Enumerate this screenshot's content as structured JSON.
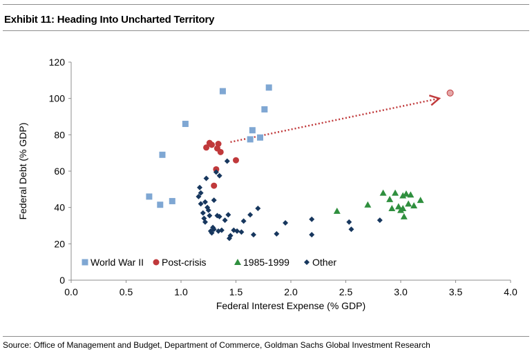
{
  "header": {
    "title": "Exhibit 11: Heading Into Uncharted Territory"
  },
  "footer": {
    "source": "Source: Office of Management and Budget, Department of Commerce, Goldman Sachs Global Investment Research"
  },
  "chart_data": {
    "type": "scatter",
    "xlabel": "Federal Interest Expense (% GDP)",
    "ylabel": "Federal  Debt (% GDP)",
    "xlim": [
      0,
      4
    ],
    "ylim": [
      0,
      120
    ],
    "xticks": [
      "0.0",
      "0.5",
      "1.0",
      "1.5",
      "2.0",
      "2.5",
      "3.0",
      "3.5",
      "4.0"
    ],
    "yticks": [
      "0",
      "20",
      "40",
      "60",
      "80",
      "100",
      "120"
    ],
    "grid": false,
    "legend_position": "bottom-left",
    "series": [
      {
        "name": "World War II",
        "marker": "square",
        "color": "#7fa7d3",
        "points": [
          [
            0.71,
            46
          ],
          [
            0.81,
            41.5
          ],
          [
            0.83,
            69
          ],
          [
            0.92,
            43.5
          ],
          [
            1.04,
            86
          ],
          [
            1.38,
            104
          ],
          [
            1.63,
            77.5
          ],
          [
            1.65,
            82.5
          ],
          [
            1.72,
            78.5
          ],
          [
            1.76,
            94
          ],
          [
            1.8,
            106
          ]
        ]
      },
      {
        "name": "Post-crisis",
        "marker": "circle",
        "color": "#c0393b",
        "points": [
          [
            1.23,
            73
          ],
          [
            1.26,
            75.5
          ],
          [
            1.28,
            74.5
          ],
          [
            1.3,
            52
          ],
          [
            1.32,
            61
          ],
          [
            1.33,
            72.5
          ],
          [
            1.34,
            75
          ],
          [
            1.36,
            70.5
          ],
          [
            1.5,
            66
          ]
        ]
      },
      {
        "name": "1985-1999",
        "marker": "triangle",
        "color": "#2f8f3e",
        "points": [
          [
            2.42,
            38
          ],
          [
            2.7,
            41.5
          ],
          [
            2.84,
            48
          ],
          [
            2.9,
            44.5
          ],
          [
            2.92,
            39.5
          ],
          [
            2.95,
            48
          ],
          [
            2.98,
            40.5
          ],
          [
            3.0,
            38.5
          ],
          [
            3.02,
            46.5
          ],
          [
            3.02,
            39.5
          ],
          [
            3.03,
            35
          ],
          [
            3.05,
            47.5
          ],
          [
            3.07,
            42
          ],
          [
            3.09,
            47
          ],
          [
            3.12,
            41
          ],
          [
            3.18,
            44
          ]
        ]
      },
      {
        "name": "Other",
        "marker": "diamond",
        "color": "#17375e",
        "points": [
          [
            1.16,
            46
          ],
          [
            1.17,
            51
          ],
          [
            1.18,
            42
          ],
          [
            1.18,
            48
          ],
          [
            1.2,
            37
          ],
          [
            1.21,
            34
          ],
          [
            1.22,
            32
          ],
          [
            1.22,
            43
          ],
          [
            1.23,
            56
          ],
          [
            1.24,
            40
          ],
          [
            1.25,
            38.5
          ],
          [
            1.26,
            35.5
          ],
          [
            1.27,
            27
          ],
          [
            1.28,
            26
          ],
          [
            1.29,
            29
          ],
          [
            1.3,
            28
          ],
          [
            1.3,
            44
          ],
          [
            1.32,
            59.5
          ],
          [
            1.33,
            35.5
          ],
          [
            1.34,
            27
          ],
          [
            1.35,
            57.5
          ],
          [
            1.35,
            35
          ],
          [
            1.37,
            27.5
          ],
          [
            1.4,
            33
          ],
          [
            1.42,
            65.5
          ],
          [
            1.43,
            36
          ],
          [
            1.44,
            23
          ],
          [
            1.45,
            24.5
          ],
          [
            1.48,
            27.5
          ],
          [
            1.51,
            27
          ],
          [
            1.55,
            26.5
          ],
          [
            1.57,
            32.5
          ],
          [
            1.63,
            36
          ],
          [
            1.66,
            25
          ],
          [
            1.7,
            39.5
          ],
          [
            1.87,
            25.5
          ],
          [
            1.95,
            31.5
          ],
          [
            2.19,
            33.5
          ],
          [
            2.19,
            25
          ],
          [
            2.53,
            32
          ],
          [
            2.55,
            28
          ],
          [
            2.81,
            33
          ]
        ]
      }
    ],
    "outlier": {
      "point": [
        3.45,
        103
      ],
      "color": "#e4a7a8",
      "stroke": "#c0393b"
    },
    "annotation": {
      "type": "dotted-arrow",
      "color": "#c0393b",
      "from": [
        1.45,
        76
      ],
      "to": [
        3.35,
        100
      ]
    }
  }
}
